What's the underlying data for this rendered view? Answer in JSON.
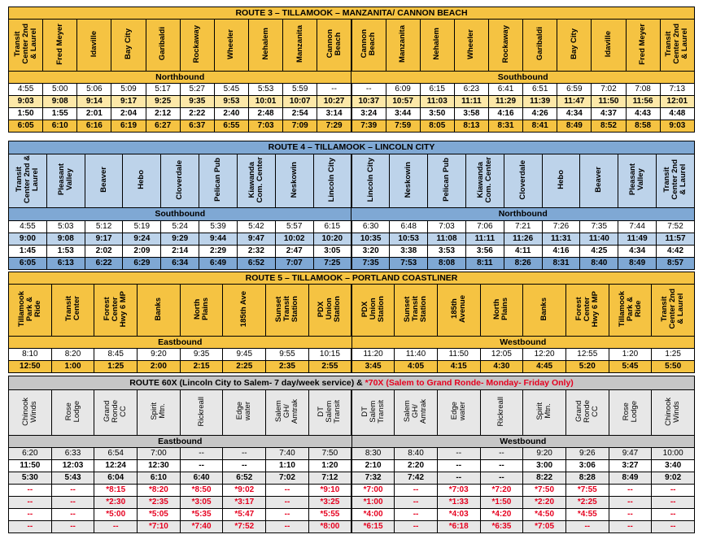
{
  "route3": {
    "title": "ROUTE 3 – TILLAMOOK – MANZANITA/ CANNON BEACH",
    "northbound_label": "Northbound",
    "southbound_label": "Southbound",
    "north_stops": [
      "Transit\nCenter 2nd\n& Laurel",
      "Fred Meyer",
      "Idaville",
      "Bay City",
      "Garibaldi",
      "Rockaway",
      "Wheeler",
      "Nehalem",
      "Manzanita",
      "Cannon\nBeach"
    ],
    "south_stops": [
      "Cannon\nBeach",
      "Manzanita",
      "Nehalem",
      "Wheeler",
      "Rockaway",
      "Garibaldi",
      "Bay City",
      "Idaville",
      "Fred Meyer",
      "Transit\nCenter 2nd\n& Laurel"
    ],
    "rows": [
      [
        "4:55",
        "5:00",
        "5:06",
        "5:09",
        "5:17",
        "5:27",
        "5:45",
        "5:53",
        "5:59",
        "--",
        "--",
        "6:09",
        "6:15",
        "6:23",
        "6:41",
        "6:51",
        "6:59",
        "7:02",
        "7:08",
        "7:13"
      ],
      [
        "9:03",
        "9:08",
        "9:14",
        "9:17",
        "9:25",
        "9:35",
        "9:53",
        "10:01",
        "10:07",
        "10:27",
        "10:37",
        "10:57",
        "11:03",
        "11:11",
        "11:29",
        "11:39",
        "11:47",
        "11:50",
        "11:56",
        "12:01"
      ],
      [
        "1:50",
        "1:55",
        "2:01",
        "2:04",
        "2:12",
        "2:22",
        "2:40",
        "2:48",
        "2:54",
        "3:14",
        "3:24",
        "3:44",
        "3:50",
        "3:58",
        "4:16",
        "4:26",
        "4:34",
        "4:37",
        "4:43",
        "4:48"
      ],
      [
        "6:05",
        "6:10",
        "6:16",
        "6:19",
        "6:27",
        "6:37",
        "6:55",
        "7:03",
        "7:09",
        "7:29",
        "7:39",
        "7:59",
        "8:05",
        "8:13",
        "8:31",
        "8:41",
        "8:49",
        "8:52",
        "8:58",
        "9:03"
      ]
    ]
  },
  "route4": {
    "title": "ROUTE 4 – TILLAMOOK – LINCOLN CITY",
    "southbound_label": "Southbound",
    "northbound_label": "Northbound",
    "south_stops": [
      "Transit\nCenter 2nd &\nLaurel",
      "Pleasant\nValley",
      "Beaver",
      "Hebo",
      "Cloverdale",
      "Pelican Pub",
      "Kiawanda\nCom. Center",
      "Neskowin",
      "Lincoln City"
    ],
    "north_stops": [
      "Lincoln City",
      "Neskowin",
      "Pelican Pub",
      "Kiawanda\nCom. Center",
      "Cloverdale",
      "Hebo",
      "Beaver",
      "Pleasant\nValley",
      "Transit\nCenter 2nd\n& Laurel"
    ],
    "rows": [
      [
        "4:55",
        "5:03",
        "5:12",
        "5:19",
        "5:24",
        "5:39",
        "5:42",
        "5:57",
        "6:15",
        "6:30",
        "6:48",
        "7:03",
        "7:06",
        "7:21",
        "7:26",
        "7:35",
        "7:44",
        "7:52"
      ],
      [
        "9:00",
        "9:08",
        "9:17",
        "9:24",
        "9:29",
        "9:44",
        "9:47",
        "10:02",
        "10:20",
        "10:35",
        "10:53",
        "11:08",
        "11:11",
        "11:26",
        "11:31",
        "11:40",
        "11:49",
        "11:57"
      ],
      [
        "1:45",
        "1:53",
        "2:02",
        "2:09",
        "2:14",
        "2:29",
        "2:32",
        "2:47",
        "3:05",
        "3:20",
        "3:38",
        "3:53",
        "3:56",
        "4:11",
        "4:16",
        "4:25",
        "4:34",
        "4:42"
      ],
      [
        "6:05",
        "6:13",
        "6:22",
        "6:29",
        "6:34",
        "6:49",
        "6:52",
        "7:07",
        "7:25",
        "7:35",
        "7:53",
        "8:08",
        "8:11",
        "8:26",
        "8:31",
        "8:40",
        "8:49",
        "8:57"
      ]
    ]
  },
  "route5": {
    "title": "ROUTE 5 – TILLAMOOK – PORTLAND COASTLINER",
    "eastbound_label": "Eastbound",
    "westbound_label": "Westbound",
    "east_stops": [
      "Tillamook\nPark &\nRide",
      "Transit\nCenter",
      "Forest\nCenter\nHwy 6 MP",
      "Banks",
      "North\nPlains",
      "185th Ave",
      "Sunset\nTransit\nStation",
      "PDX\nUnion\nStation"
    ],
    "west_stops": [
      "PDX\nUnion\nStation",
      "Sunset\nTransit\nStation",
      "185th\nAvenue",
      "North\nPlains",
      "Banks",
      "Forest\nCenter\nHwy 6 MP",
      "Tillamook\nPark &\nRide",
      "Transit\nCenter 2nd\n& Laurel"
    ],
    "rows": [
      [
        "8:10",
        "8:20",
        "8:45",
        "9:20",
        "9:35",
        "9:45",
        "9:55",
        "10:15",
        "11:20",
        "11:40",
        "11:50",
        "12:05",
        "12:20",
        "12:55",
        "1:20",
        "1:25"
      ],
      [
        "12:50",
        "1:00",
        "1:25",
        "2:00",
        "2:15",
        "2:25",
        "2:35",
        "2:55",
        "3:45",
        "4:05",
        "4:15",
        "4:30",
        "4:45",
        "5:20",
        "5:45",
        "5:50"
      ]
    ]
  },
  "route60": {
    "title_black": "ROUTE 60X (Lincoln City to Salem- 7 day/week service)  &",
    "title_red": " *70X (Salem to Grand Ronde- Monday- Friday Only)",
    "eastbound_label": "Eastbound",
    "westbound_label": "Westbound",
    "east_stops": [
      "Chinook\nWinds",
      "Rose\nLodge",
      "Grand\nRonde\nCC",
      "Spirit\nMtn.",
      "Rickreall",
      "Edge\nwater",
      "Salem\nGH/\nAmtrak",
      "DT\nSalem\nTransit"
    ],
    "west_stops": [
      "DT\nSalem\nTransit",
      "Salem\nGH/\nAmtrak",
      "Edge\nwater",
      "Rickreall",
      "Spirit\nMtn.",
      "Grand\nRonde\nCC",
      "Rose\nLodge",
      "Chinook\nWinds"
    ],
    "rows": [
      [
        "6:20",
        "6:33",
        "6:54",
        "7:00",
        "--",
        "--",
        "7:40",
        "7:50",
        "8:30",
        "8:40",
        "--",
        "--",
        "9:20",
        "9:26",
        "9:47",
        "10:00"
      ],
      [
        "11:50",
        "12:03",
        "12:24",
        "12:30",
        "--",
        "--",
        "1:10",
        "1:20",
        "2:10",
        "2:20",
        "--",
        "--",
        "3:00",
        "3:06",
        "3:27",
        "3:40"
      ],
      [
        "5:30",
        "5:43",
        "6:04",
        "6:10",
        "6:40",
        "6:52",
        "7:02",
        "7:12",
        "7:32",
        "7:42",
        "--",
        "--",
        "8:22",
        "8:28",
        "8:49",
        "9:02"
      ]
    ],
    "red_rows": [
      [
        "--",
        "--",
        "*8:15",
        "*8:20",
        "*8:50",
        "*9:02",
        "--",
        "*9:10",
        "*7:00",
        "--",
        "*7:03",
        "*7:20",
        "*7:50",
        "*7:55",
        "--",
        "--"
      ],
      [
        "--",
        "--",
        "*2:30",
        "*2:35",
        "*3:05",
        "*3:17",
        "--",
        "*3:25",
        "*1:00",
        "--",
        "*1:33",
        "*1:50",
        "*2:20",
        "*2:25",
        "--",
        "--"
      ],
      [
        "--",
        "--",
        "*5:00",
        "*5:05",
        "*5:35",
        "*5:47",
        "--",
        "*5:55",
        "*4:00",
        "--",
        "*4:03",
        "*4:20",
        "*4:50",
        "*4:55",
        "--",
        "--"
      ],
      [
        "--",
        "--",
        "--",
        "*7:10",
        "*7:40",
        "*7:52",
        "--",
        "*8:00",
        "*6:15",
        "--",
        "*6:18",
        "*6:35",
        "*7:05",
        "--",
        "--",
        "--"
      ]
    ]
  },
  "colors": {
    "gold": "#f5c342",
    "light_gold": "#fbe38e",
    "blue": "#7fa8d4",
    "light_blue": "#bdd3ea",
    "grey": "#c6c6c6",
    "light_grey": "#e7e7e7",
    "red": "#e6001f"
  }
}
